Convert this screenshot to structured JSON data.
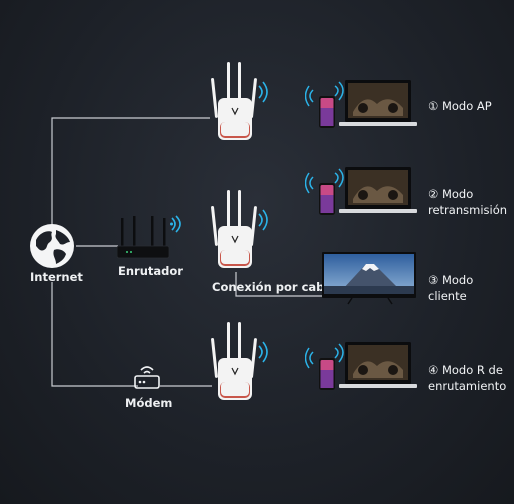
{
  "nodes": {
    "internet": "Internet",
    "router": "Enrutador",
    "modem": "Módem",
    "cable": "Conexión por cable"
  },
  "modes": [
    {
      "line1": "① Modo AP",
      "line2": ""
    },
    {
      "line1": "② Modo",
      "line2": "retransmisión"
    },
    {
      "line1": "③ Modo cliente",
      "line2": ""
    },
    {
      "line1": "④ Modo R de",
      "line2": "enrutamiento"
    }
  ],
  "colors": {
    "background": "#1d2128",
    "line": "#c9ccd1",
    "wifi": "#2bb3e8",
    "extender": "#f3f3f3",
    "extender_accent": "#c0392b",
    "tv_sky": "#3a6fb0"
  },
  "icons": [
    "globe-icon",
    "router-icon",
    "modem-icon",
    "wifi-extender-icon",
    "laptop-icon",
    "phone-icon",
    "tv-icon",
    "wifi-signal-icon"
  ]
}
